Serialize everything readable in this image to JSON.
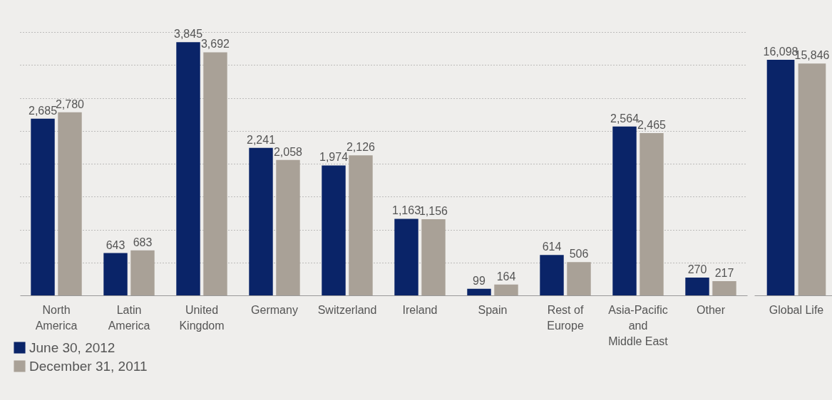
{
  "chart_data": [
    {
      "type": "bar",
      "categories": [
        "North\nAmerica",
        "Latin\nAmerica",
        "United\nKingdom",
        "Germany",
        "Switzerland",
        "Ireland",
        "Spain",
        "Rest of\nEurope",
        "Asia-Pacific\nand\nMiddle East",
        "Other"
      ],
      "series": [
        {
          "name": "June 30, 2012",
          "color": "#0a2468",
          "values": [
            2685,
            643,
            3845,
            2241,
            1974,
            1163,
            99,
            614,
            2564,
            270
          ],
          "value_labels": [
            "2,685",
            "643",
            "3,845",
            "2,241",
            "1,974",
            "1,163",
            "99",
            "614",
            "2,564",
            "270"
          ]
        },
        {
          "name": "December 31, 2011",
          "color": "#a9a197",
          "values": [
            2780,
            683,
            3692,
            2058,
            2126,
            1156,
            164,
            506,
            2465,
            217
          ],
          "value_labels": [
            "2,780",
            "683",
            "3,692",
            "2,058",
            "2,126",
            "1,156",
            "164",
            "506",
            "2,465",
            "217"
          ]
        }
      ],
      "yticks": [
        {
          "value": 500,
          "label": null
        },
        {
          "value": 1000,
          "label": null
        },
        {
          "value": 1500,
          "label": null
        },
        {
          "value": 2000,
          "label": null
        },
        {
          "value": 2500,
          "label": null
        },
        {
          "value": 3000,
          "label": null
        },
        {
          "value": 3500,
          "label": null
        },
        {
          "value": 4000,
          "label": null
        }
      ],
      "grid": "y",
      "tick_labels": "x",
      "legend": "bottom left"
    },
    {
      "type": "bar",
      "categories": [
        "Global Life"
      ],
      "series": [
        {
          "color": "#0a2468",
          "values": [
            16098
          ],
          "value_labels": [
            "16,098"
          ]
        },
        {
          "color": "#a9a197",
          "values": [
            15846
          ],
          "value_labels": [
            "15,846"
          ]
        }
      ],
      "tick_labels": "x"
    }
  ]
}
